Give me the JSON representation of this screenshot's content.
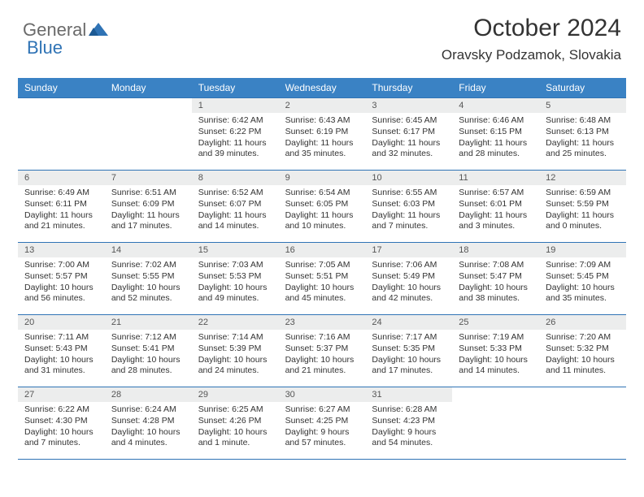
{
  "brand": {
    "text1": "General",
    "text2": "Blue"
  },
  "title": "October 2024",
  "location": "Oravsky Podzamok, Slovakia",
  "colors": {
    "header_bg": "#3a82c4",
    "header_fg": "#ffffff",
    "rule": "#2f73b5",
    "daynum_bg": "#eceded",
    "text": "#333333"
  },
  "day_names": [
    "Sunday",
    "Monday",
    "Tuesday",
    "Wednesday",
    "Thursday",
    "Friday",
    "Saturday"
  ],
  "weeks": [
    [
      {
        "n": "",
        "blank": true
      },
      {
        "n": "",
        "blank": true
      },
      {
        "n": "1",
        "sunrise": "Sunrise: 6:42 AM",
        "sunset": "Sunset: 6:22 PM",
        "daylight": "Daylight: 11 hours and 39 minutes."
      },
      {
        "n": "2",
        "sunrise": "Sunrise: 6:43 AM",
        "sunset": "Sunset: 6:19 PM",
        "daylight": "Daylight: 11 hours and 35 minutes."
      },
      {
        "n": "3",
        "sunrise": "Sunrise: 6:45 AM",
        "sunset": "Sunset: 6:17 PM",
        "daylight": "Daylight: 11 hours and 32 minutes."
      },
      {
        "n": "4",
        "sunrise": "Sunrise: 6:46 AM",
        "sunset": "Sunset: 6:15 PM",
        "daylight": "Daylight: 11 hours and 28 minutes."
      },
      {
        "n": "5",
        "sunrise": "Sunrise: 6:48 AM",
        "sunset": "Sunset: 6:13 PM",
        "daylight": "Daylight: 11 hours and 25 minutes."
      }
    ],
    [
      {
        "n": "6",
        "sunrise": "Sunrise: 6:49 AM",
        "sunset": "Sunset: 6:11 PM",
        "daylight": "Daylight: 11 hours and 21 minutes."
      },
      {
        "n": "7",
        "sunrise": "Sunrise: 6:51 AM",
        "sunset": "Sunset: 6:09 PM",
        "daylight": "Daylight: 11 hours and 17 minutes."
      },
      {
        "n": "8",
        "sunrise": "Sunrise: 6:52 AM",
        "sunset": "Sunset: 6:07 PM",
        "daylight": "Daylight: 11 hours and 14 minutes."
      },
      {
        "n": "9",
        "sunrise": "Sunrise: 6:54 AM",
        "sunset": "Sunset: 6:05 PM",
        "daylight": "Daylight: 11 hours and 10 minutes."
      },
      {
        "n": "10",
        "sunrise": "Sunrise: 6:55 AM",
        "sunset": "Sunset: 6:03 PM",
        "daylight": "Daylight: 11 hours and 7 minutes."
      },
      {
        "n": "11",
        "sunrise": "Sunrise: 6:57 AM",
        "sunset": "Sunset: 6:01 PM",
        "daylight": "Daylight: 11 hours and 3 minutes."
      },
      {
        "n": "12",
        "sunrise": "Sunrise: 6:59 AM",
        "sunset": "Sunset: 5:59 PM",
        "daylight": "Daylight: 11 hours and 0 minutes."
      }
    ],
    [
      {
        "n": "13",
        "sunrise": "Sunrise: 7:00 AM",
        "sunset": "Sunset: 5:57 PM",
        "daylight": "Daylight: 10 hours and 56 minutes."
      },
      {
        "n": "14",
        "sunrise": "Sunrise: 7:02 AM",
        "sunset": "Sunset: 5:55 PM",
        "daylight": "Daylight: 10 hours and 52 minutes."
      },
      {
        "n": "15",
        "sunrise": "Sunrise: 7:03 AM",
        "sunset": "Sunset: 5:53 PM",
        "daylight": "Daylight: 10 hours and 49 minutes."
      },
      {
        "n": "16",
        "sunrise": "Sunrise: 7:05 AM",
        "sunset": "Sunset: 5:51 PM",
        "daylight": "Daylight: 10 hours and 45 minutes."
      },
      {
        "n": "17",
        "sunrise": "Sunrise: 7:06 AM",
        "sunset": "Sunset: 5:49 PM",
        "daylight": "Daylight: 10 hours and 42 minutes."
      },
      {
        "n": "18",
        "sunrise": "Sunrise: 7:08 AM",
        "sunset": "Sunset: 5:47 PM",
        "daylight": "Daylight: 10 hours and 38 minutes."
      },
      {
        "n": "19",
        "sunrise": "Sunrise: 7:09 AM",
        "sunset": "Sunset: 5:45 PM",
        "daylight": "Daylight: 10 hours and 35 minutes."
      }
    ],
    [
      {
        "n": "20",
        "sunrise": "Sunrise: 7:11 AM",
        "sunset": "Sunset: 5:43 PM",
        "daylight": "Daylight: 10 hours and 31 minutes."
      },
      {
        "n": "21",
        "sunrise": "Sunrise: 7:12 AM",
        "sunset": "Sunset: 5:41 PM",
        "daylight": "Daylight: 10 hours and 28 minutes."
      },
      {
        "n": "22",
        "sunrise": "Sunrise: 7:14 AM",
        "sunset": "Sunset: 5:39 PM",
        "daylight": "Daylight: 10 hours and 24 minutes."
      },
      {
        "n": "23",
        "sunrise": "Sunrise: 7:16 AM",
        "sunset": "Sunset: 5:37 PM",
        "daylight": "Daylight: 10 hours and 21 minutes."
      },
      {
        "n": "24",
        "sunrise": "Sunrise: 7:17 AM",
        "sunset": "Sunset: 5:35 PM",
        "daylight": "Daylight: 10 hours and 17 minutes."
      },
      {
        "n": "25",
        "sunrise": "Sunrise: 7:19 AM",
        "sunset": "Sunset: 5:33 PM",
        "daylight": "Daylight: 10 hours and 14 minutes."
      },
      {
        "n": "26",
        "sunrise": "Sunrise: 7:20 AM",
        "sunset": "Sunset: 5:32 PM",
        "daylight": "Daylight: 10 hours and 11 minutes."
      }
    ],
    [
      {
        "n": "27",
        "sunrise": "Sunrise: 6:22 AM",
        "sunset": "Sunset: 4:30 PM",
        "daylight": "Daylight: 10 hours and 7 minutes."
      },
      {
        "n": "28",
        "sunrise": "Sunrise: 6:24 AM",
        "sunset": "Sunset: 4:28 PM",
        "daylight": "Daylight: 10 hours and 4 minutes."
      },
      {
        "n": "29",
        "sunrise": "Sunrise: 6:25 AM",
        "sunset": "Sunset: 4:26 PM",
        "daylight": "Daylight: 10 hours and 1 minute."
      },
      {
        "n": "30",
        "sunrise": "Sunrise: 6:27 AM",
        "sunset": "Sunset: 4:25 PM",
        "daylight": "Daylight: 9 hours and 57 minutes."
      },
      {
        "n": "31",
        "sunrise": "Sunrise: 6:28 AM",
        "sunset": "Sunset: 4:23 PM",
        "daylight": "Daylight: 9 hours and 54 minutes."
      },
      {
        "n": "",
        "blank": true
      },
      {
        "n": "",
        "blank": true
      }
    ]
  ]
}
